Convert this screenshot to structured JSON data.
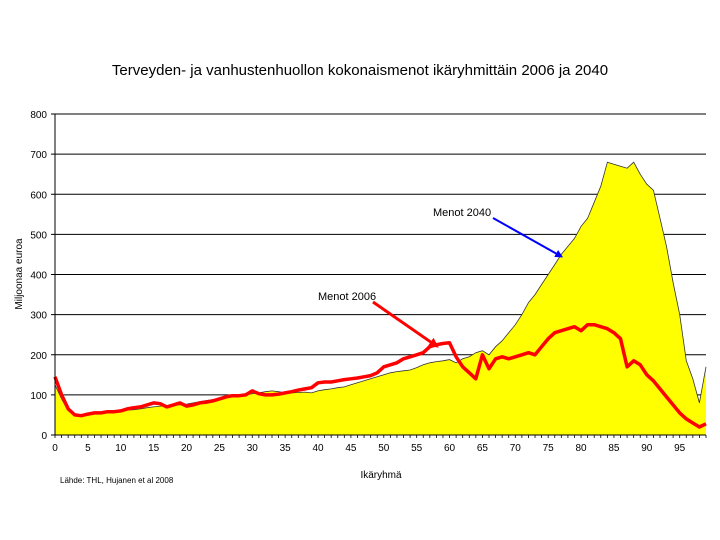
{
  "chart_data": {
    "type": "area",
    "title": "Terveyden- ja vanhustenhuollon kokonaismenot ikäryhmittäin 2006 ja 2040",
    "xlabel": "Ikäryhmä",
    "ylabel": "Miljoonaa euroa",
    "xlim": [
      0,
      99
    ],
    "ylim": [
      0,
      800
    ],
    "x_ticks": [
      0,
      5,
      10,
      15,
      20,
      25,
      30,
      35,
      40,
      45,
      50,
      55,
      60,
      65,
      70,
      75,
      80,
      85,
      90,
      95
    ],
    "y_ticks": [
      0,
      100,
      200,
      300,
      400,
      500,
      600,
      700,
      800
    ],
    "grid": "horizontal",
    "legend": "none",
    "x": [
      0,
      1,
      2,
      3,
      4,
      5,
      6,
      7,
      8,
      9,
      10,
      11,
      12,
      13,
      14,
      15,
      16,
      17,
      18,
      19,
      20,
      21,
      22,
      23,
      24,
      25,
      26,
      27,
      28,
      29,
      30,
      31,
      32,
      33,
      34,
      35,
      36,
      37,
      38,
      39,
      40,
      41,
      42,
      43,
      44,
      45,
      46,
      47,
      48,
      49,
      50,
      51,
      52,
      53,
      54,
      55,
      56,
      57,
      58,
      59,
      60,
      61,
      62,
      63,
      64,
      65,
      66,
      67,
      68,
      69,
      70,
      71,
      72,
      73,
      74,
      75,
      76,
      77,
      78,
      79,
      80,
      81,
      82,
      83,
      84,
      85,
      86,
      87,
      88,
      89,
      90,
      91,
      92,
      93,
      94,
      95,
      96,
      97,
      98,
      99
    ],
    "series": [
      {
        "name": "Menot 2040",
        "style": "area",
        "color": "#ffff00",
        "values": [
          125,
          90,
          60,
          50,
          48,
          50,
          52,
          55,
          57,
          58,
          60,
          62,
          63,
          65,
          68,
          70,
          72,
          73,
          74,
          75,
          77,
          80,
          83,
          86,
          88,
          90,
          93,
          96,
          98,
          100,
          103,
          105,
          108,
          110,
          108,
          105,
          105,
          106,
          107,
          105,
          110,
          113,
          115,
          118,
          120,
          125,
          130,
          135,
          140,
          145,
          150,
          155,
          158,
          160,
          162,
          168,
          175,
          180,
          183,
          185,
          188,
          180,
          190,
          195,
          205,
          210,
          200,
          220,
          235,
          255,
          275,
          300,
          330,
          350,
          375,
          400,
          425,
          450,
          470,
          490,
          520,
          540,
          580,
          620,
          680,
          675,
          670,
          665,
          680,
          650,
          625,
          610,
          540,
          470,
          380,
          300,
          185,
          140,
          80,
          170
        ]
      },
      {
        "name": "Menot 2006",
        "style": "line",
        "color": "#ff0000",
        "values": [
          145,
          100,
          65,
          50,
          48,
          52,
          55,
          55,
          58,
          58,
          60,
          65,
          68,
          70,
          75,
          80,
          78,
          70,
          75,
          80,
          72,
          75,
          80,
          82,
          85,
          90,
          95,
          98,
          98,
          100,
          110,
          103,
          100,
          100,
          102,
          105,
          108,
          112,
          115,
          118,
          130,
          132,
          132,
          135,
          138,
          140,
          142,
          145,
          148,
          155,
          170,
          175,
          180,
          190,
          195,
          200,
          205,
          220,
          225,
          228,
          230,
          195,
          170,
          155,
          140,
          200,
          165,
          190,
          195,
          190,
          195,
          200,
          205,
          200,
          220,
          240,
          255,
          260,
          265,
          270,
          260,
          275,
          275,
          270,
          265,
          255,
          240,
          170,
          185,
          175,
          150,
          135,
          115,
          95,
          75,
          55,
          40,
          30,
          20,
          28
        ]
      }
    ],
    "annotations": [
      {
        "text": "Menot 2040",
        "arrow_to": [
          77,
          445
        ],
        "color": "#0000ff"
      },
      {
        "text": "Menot 2006",
        "arrow_to": [
          58,
          222
        ],
        "color": "#ff0000"
      }
    ],
    "source": "Lähde: THL, Hujanen et al 2008"
  }
}
